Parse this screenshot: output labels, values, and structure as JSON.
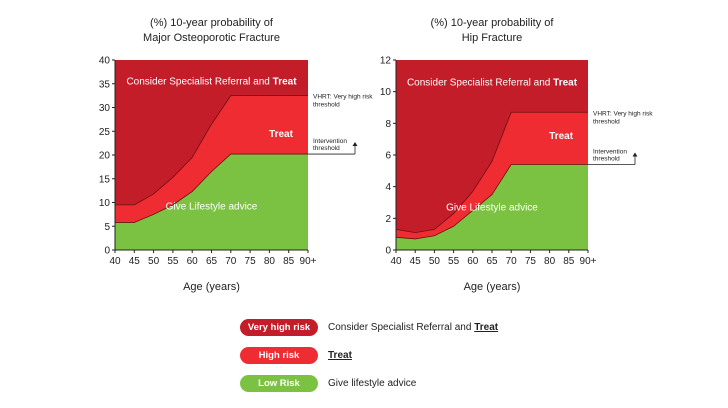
{
  "chart_data": [
    {
      "type": "area",
      "title": "(%) 10-year probability of\nMajor Osteoporotic Fracture",
      "title_lines": [
        "(%) 10-year probability of",
        "Major Osteoporotic Fracture"
      ],
      "xlabel": "Age (years)",
      "ylabel": "",
      "x": [
        40,
        45,
        50,
        55,
        60,
        65,
        70,
        75,
        80,
        85,
        90
      ],
      "x_tick_labels": [
        "40",
        "45",
        "50",
        "55",
        "60",
        "65",
        "70",
        "75",
        "80",
        "85",
        "90+"
      ],
      "xlim": [
        40,
        90
      ],
      "ylim": [
        0,
        40
      ],
      "y_ticks": [
        0,
        5,
        10,
        15,
        20,
        25,
        30,
        35,
        40
      ],
      "grid": false,
      "series": [
        {
          "name": "Low Risk",
          "color": "#7cc242",
          "values": [
            5.8,
            5.8,
            7.5,
            9.5,
            12.3,
            16.5,
            20.2,
            20.2,
            20.2,
            20.2,
            20.2
          ]
        },
        {
          "name": "High risk",
          "color": "#ee2c32",
          "values": [
            9.5,
            9.5,
            11.8,
            15.3,
            19.5,
            26.5,
            32.5,
            32.5,
            32.5,
            32.5,
            32.5
          ]
        },
        {
          "name": "Very high risk",
          "color": "#c41d2a",
          "values": [
            40,
            40,
            40,
            40,
            40,
            40,
            40,
            40,
            40,
            40,
            40
          ]
        }
      ],
      "region_labels": [
        {
          "text": "Consider Specialist Referral and ",
          "bold_text": "Treat",
          "x": 65,
          "y": 34.8
        },
        {
          "text": "",
          "bold_text": "Treat",
          "x": 83,
          "y": 23.8
        },
        {
          "text": "Give Lifestyle advice",
          "bold_text": "",
          "x": 65,
          "y": 8.5
        }
      ],
      "annotations": [
        {
          "text_lines": [
            "VHRT: Very high risk",
            "threshold"
          ],
          "y": 32.5
        },
        {
          "text_lines": [
            "Intervention",
            "threshold"
          ],
          "y": 20.2
        }
      ]
    },
    {
      "type": "area",
      "title": "(%) 10-year probability of\nHip Fracture",
      "title_lines": [
        "(%) 10-year probability of",
        "Hip Fracture"
      ],
      "xlabel": "Age (years)",
      "ylabel": "",
      "x": [
        40,
        45,
        50,
        55,
        60,
        65,
        70,
        75,
        80,
        85,
        90
      ],
      "x_tick_labels": [
        "40",
        "45",
        "50",
        "55",
        "60",
        "65",
        "70",
        "75",
        "80",
        "85",
        "90+"
      ],
      "xlim": [
        40,
        90
      ],
      "ylim": [
        0,
        12
      ],
      "y_ticks": [
        0,
        2,
        4,
        6,
        8,
        10,
        12
      ],
      "grid": false,
      "series": [
        {
          "name": "Low Risk",
          "color": "#7cc242",
          "values": [
            0.8,
            0.7,
            0.9,
            1.5,
            2.5,
            3.5,
            5.4,
            5.4,
            5.4,
            5.4,
            5.4
          ]
        },
        {
          "name": "High risk",
          "color": "#ee2c32",
          "values": [
            1.3,
            1.1,
            1.3,
            2.3,
            3.7,
            5.6,
            8.7,
            8.7,
            8.7,
            8.7,
            8.7
          ]
        },
        {
          "name": "Very high risk",
          "color": "#c41d2a",
          "values": [
            12,
            12,
            12,
            12,
            12,
            12,
            12,
            12,
            12,
            12,
            12
          ]
        }
      ],
      "region_labels": [
        {
          "text": "Consider Specialist Referral and ",
          "bold_text": "Treat",
          "x": 65,
          "y": 10.4
        },
        {
          "text": "",
          "bold_text": "Treat",
          "x": 83,
          "y": 7.0
        },
        {
          "text": "Give Lifestyle advice",
          "bold_text": "",
          "x": 65,
          "y": 2.5
        }
      ],
      "annotations": [
        {
          "text_lines": [
            "VHRT: Very high risk",
            "threshold"
          ],
          "y": 8.7
        },
        {
          "text_lines": [
            "Intervention",
            "threshold"
          ],
          "y": 5.4
        }
      ]
    }
  ],
  "legend": [
    {
      "label": "Very high risk",
      "color": "#c41d2a",
      "text": "Consider Specialist Referral and ",
      "bold": "Treat"
    },
    {
      "label": "High risk",
      "color": "#ee2c32",
      "text": "",
      "bold": "Treat"
    },
    {
      "label": "Low Risk",
      "color": "#7cc242",
      "text": "Give lifestyle advice",
      "bold": ""
    }
  ]
}
